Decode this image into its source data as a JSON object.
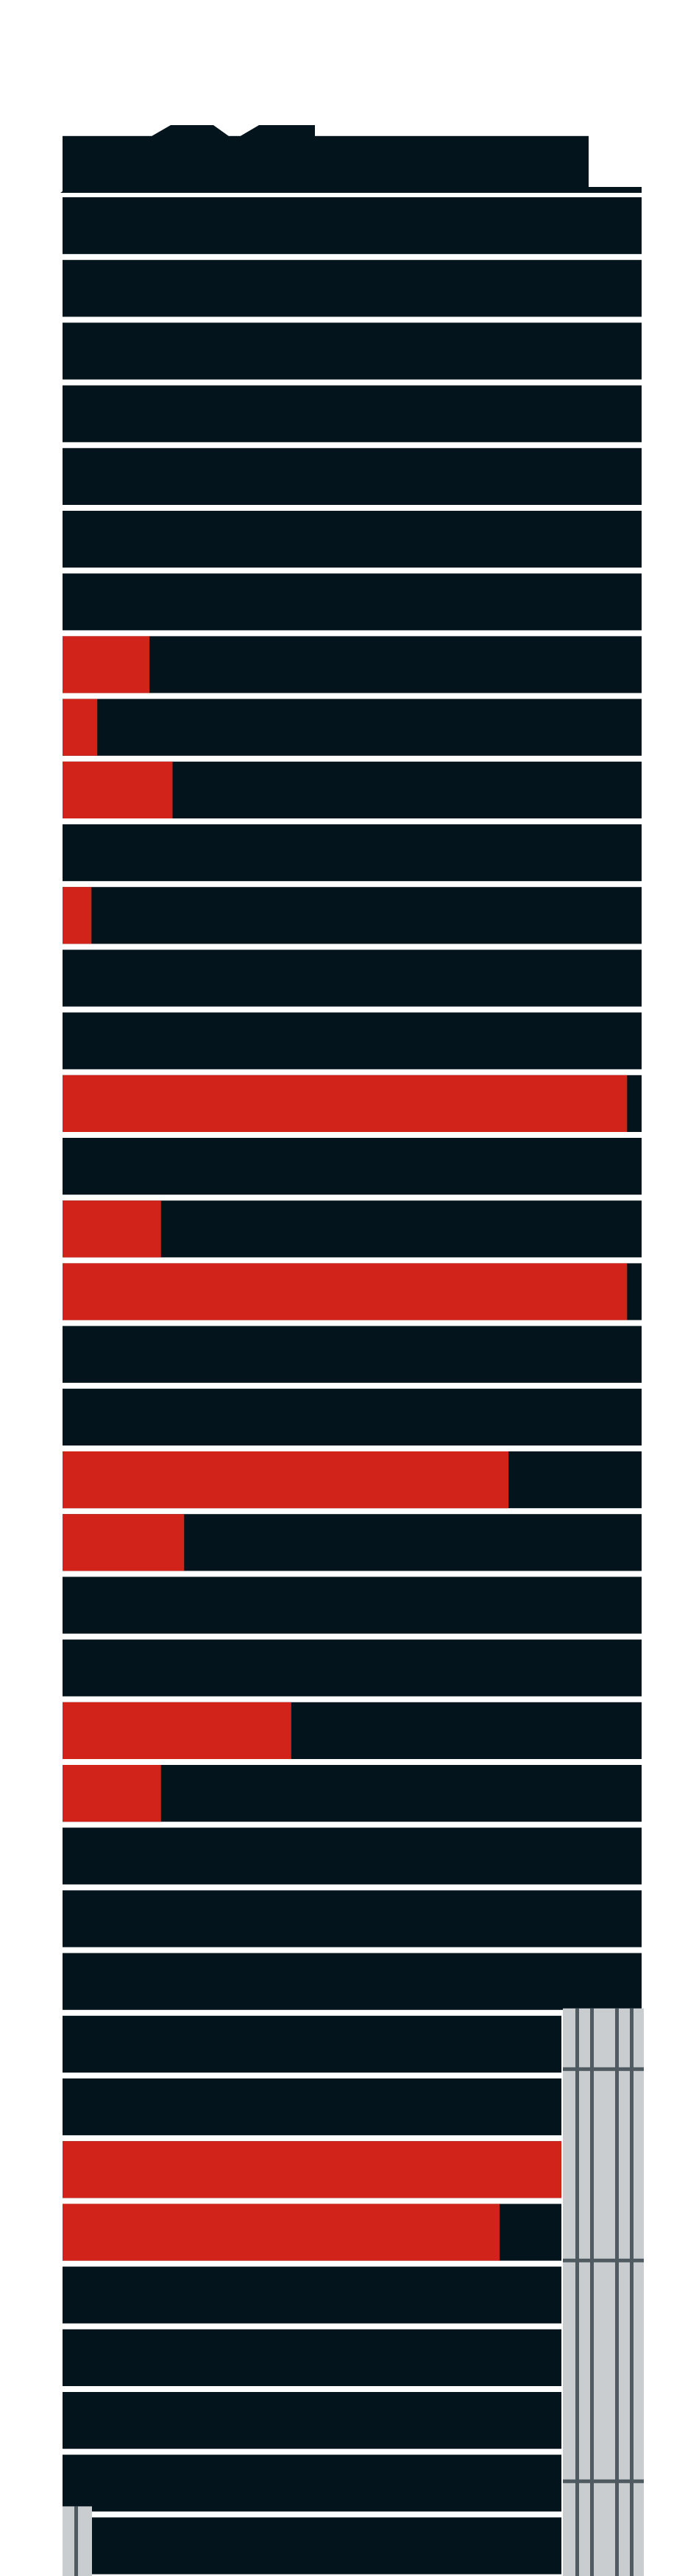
{
  "figure": {
    "type": "building-floor-occupancy-diagram",
    "colors": {
      "background": "#ffffff",
      "floor": "#03141c",
      "highlight": "#d2231b",
      "separator": "#ffffff",
      "scaffold": "#c9cdd0",
      "scaffold_dark": "#4f5a61"
    },
    "top_floor_fill": 0,
    "floors_top_to_bottom": [
      0,
      0,
      0,
      0,
      0,
      0,
      0,
      0.15,
      0.06,
      0.19,
      0,
      0.05,
      0,
      0,
      0.975,
      0,
      0.17,
      0.975,
      0,
      0,
      0.77,
      0.21,
      0,
      0,
      0.395,
      0.17,
      0,
      0,
      0,
      0,
      0,
      1.0,
      0.876,
      0,
      0,
      0,
      0,
      0
    ]
  }
}
